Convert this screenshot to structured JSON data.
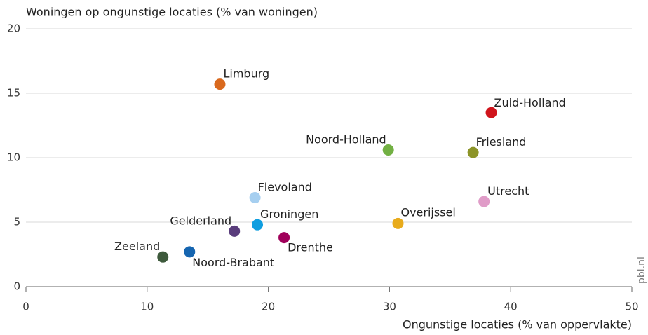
{
  "chart_data": {
    "type": "scatter",
    "title": "Woningen op ongunstige locaties (% van woningen)",
    "x_label": "Ongunstige locaties (% van oppervlakte)",
    "source": "pbl.nl",
    "xlim": [
      0,
      50
    ],
    "xticks": [
      0,
      10,
      20,
      30,
      40,
      50
    ],
    "ylim": [
      0,
      20
    ],
    "yticks": [
      0,
      5,
      10,
      15,
      20
    ],
    "grid": true,
    "points": [
      {
        "name": "Limburg",
        "x": 16.0,
        "y": 15.7,
        "color": "#d9691e"
      },
      {
        "name": "Zuid-Holland",
        "x": 38.4,
        "y": 13.5,
        "color": "#d0141c"
      },
      {
        "name": "Noord-Holland",
        "x": 29.9,
        "y": 10.6,
        "color": "#72b043"
      },
      {
        "name": "Friesland",
        "x": 36.9,
        "y": 10.4,
        "color": "#8c9428"
      },
      {
        "name": "Flevoland",
        "x": 18.9,
        "y": 6.9,
        "color": "#a6cff0"
      },
      {
        "name": "Utrecht",
        "x": 37.8,
        "y": 6.6,
        "color": "#e09cc8"
      },
      {
        "name": "Groningen",
        "x": 19.1,
        "y": 4.8,
        "color": "#0f9ee0"
      },
      {
        "name": "Overijssel",
        "x": 30.7,
        "y": 4.9,
        "color": "#e8ab1c"
      },
      {
        "name": "Gelderland",
        "x": 17.2,
        "y": 4.3,
        "color": "#5a3d7c"
      },
      {
        "name": "Drenthe",
        "x": 21.3,
        "y": 3.8,
        "color": "#a0005a"
      },
      {
        "name": "Zeeland",
        "x": 11.3,
        "y": 2.3,
        "color": "#3e5a3c"
      },
      {
        "name": "Noord-Brabant",
        "x": 13.5,
        "y": 2.7,
        "color": "#1565b0"
      }
    ]
  }
}
